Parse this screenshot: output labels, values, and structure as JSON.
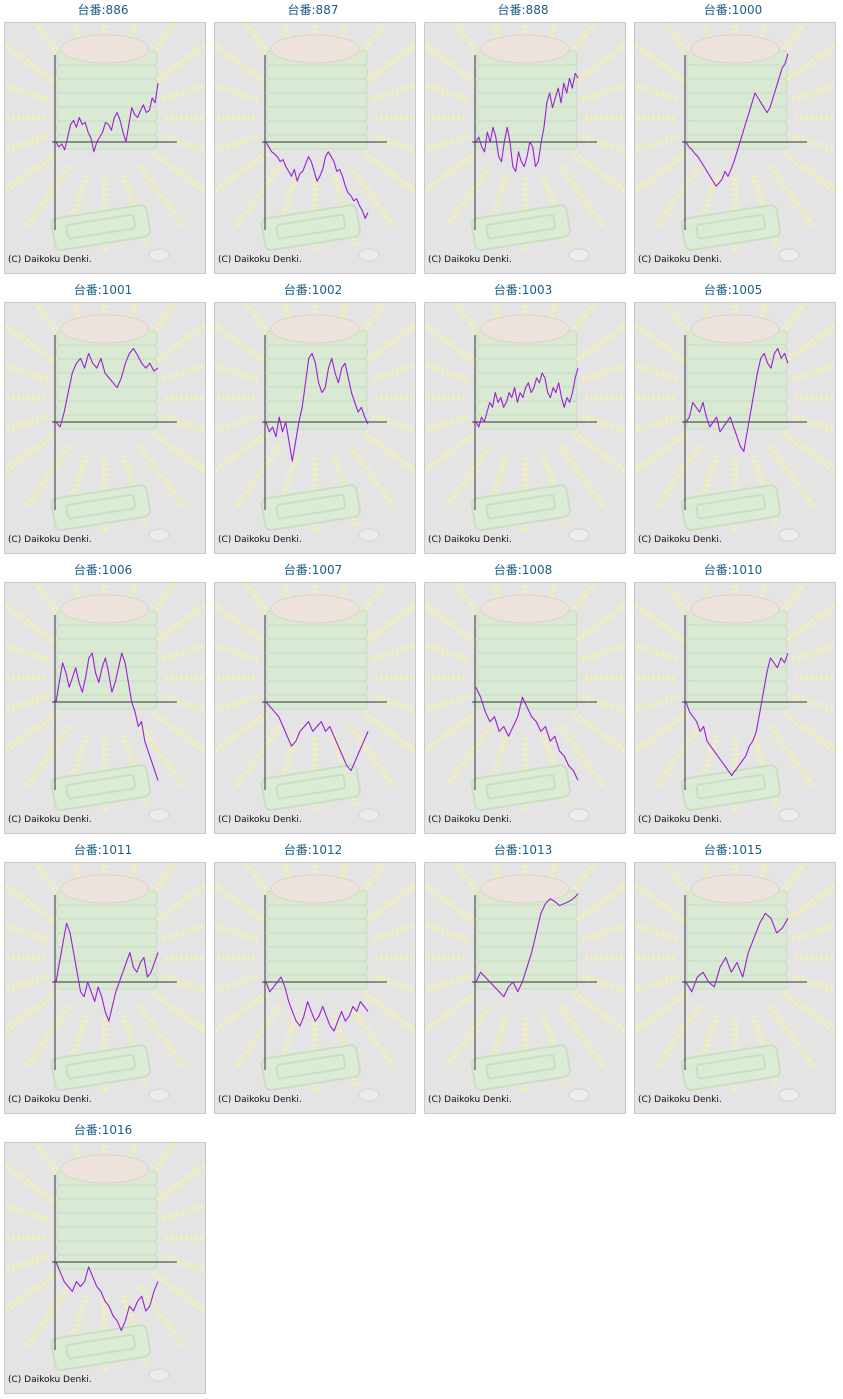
{
  "copyright": "(C) Daikoku Denki.",
  "colors": {
    "title": "#1a5e86",
    "line": "#9a1fd6",
    "axis": "#333333",
    "panel": "#e4e4e4"
  },
  "chart_data": [
    {
      "type": "line",
      "title": "台番:886",
      "values": [
        0,
        -5,
        -2,
        -8,
        5,
        18,
        22,
        15,
        25,
        18,
        20,
        10,
        4,
        -10,
        0,
        5,
        10,
        20,
        18,
        12,
        25,
        30,
        22,
        10,
        0,
        18,
        35,
        28,
        25,
        32,
        38,
        30,
        32,
        45,
        40,
        60
      ]
    },
    {
      "type": "line",
      "title": "台番:887",
      "values": [
        0,
        -5,
        -10,
        -12,
        -15,
        -20,
        -18,
        -25,
        -30,
        -35,
        -28,
        -40,
        -32,
        -30,
        -22,
        -15,
        -20,
        -30,
        -40,
        -35,
        -28,
        -15,
        -10,
        -15,
        -20,
        -30,
        -28,
        -35,
        -45,
        -52,
        -55,
        -60,
        -58,
        -65,
        -70,
        -78,
        -72
      ]
    },
    {
      "type": "line",
      "title": "台番:888",
      "values": [
        0,
        5,
        -5,
        -10,
        10,
        0,
        15,
        5,
        -15,
        -20,
        0,
        15,
        0,
        -25,
        -30,
        -10,
        -20,
        -25,
        -15,
        0,
        -5,
        -25,
        -20,
        0,
        15,
        40,
        50,
        35,
        45,
        55,
        40,
        60,
        50,
        65,
        55,
        70,
        65
      ]
    },
    {
      "type": "line",
      "title": "台番:1000",
      "values": [
        0,
        -5,
        -8,
        -12,
        -15,
        -20,
        -25,
        -30,
        -35,
        -40,
        -45,
        -42,
        -38,
        -30,
        -35,
        -28,
        -20,
        -10,
        0,
        10,
        20,
        30,
        40,
        50,
        45,
        40,
        35,
        30,
        35,
        45,
        55,
        65,
        75,
        80,
        90
      ]
    },
    {
      "type": "line",
      "title": "台番:1001",
      "values": [
        0,
        -5,
        10,
        30,
        50,
        60,
        65,
        55,
        70,
        60,
        55,
        65,
        50,
        45,
        40,
        35,
        45,
        60,
        70,
        75,
        68,
        60,
        55,
        60,
        52,
        55
      ]
    },
    {
      "type": "line",
      "title": "台番:1002",
      "values": [
        0,
        -10,
        -5,
        -15,
        5,
        -10,
        0,
        -20,
        -40,
        -20,
        0,
        15,
        40,
        65,
        70,
        60,
        40,
        30,
        35,
        55,
        65,
        50,
        40,
        55,
        60,
        45,
        30,
        20,
        10,
        15,
        5,
        -2
      ]
    },
    {
      "type": "line",
      "title": "台番:1003",
      "values": [
        0,
        -5,
        5,
        0,
        10,
        20,
        15,
        30,
        20,
        25,
        15,
        20,
        30,
        25,
        35,
        20,
        30,
        25,
        35,
        40,
        30,
        35,
        45,
        40,
        50,
        45,
        30,
        25,
        35,
        30,
        40,
        25,
        15,
        25,
        20,
        30,
        45,
        55
      ]
    },
    {
      "type": "line",
      "title": "台番:1005",
      "values": [
        0,
        5,
        20,
        15,
        10,
        20,
        5,
        -5,
        0,
        5,
        -10,
        -5,
        0,
        5,
        -5,
        -15,
        -25,
        -30,
        -10,
        10,
        30,
        50,
        65,
        70,
        60,
        55,
        70,
        75,
        65,
        70,
        60
      ]
    },
    {
      "type": "line",
      "title": "台番:1006",
      "values": [
        0,
        20,
        40,
        30,
        15,
        25,
        35,
        20,
        10,
        25,
        45,
        50,
        30,
        20,
        35,
        45,
        30,
        10,
        20,
        35,
        50,
        40,
        20,
        0,
        -10,
        -25,
        -20,
        -40,
        -50,
        -60,
        -70,
        -80
      ]
    },
    {
      "type": "line",
      "title": "台番:1007",
      "values": [
        0,
        -5,
        -10,
        -15,
        -25,
        -35,
        -45,
        -40,
        -30,
        -25,
        -20,
        -30,
        -25,
        -20,
        -30,
        -25,
        -35,
        -45,
        -55,
        -65,
        -70,
        -60,
        -50,
        -40,
        -30
      ]
    },
    {
      "type": "line",
      "title": "台番:1008",
      "values": [
        15,
        5,
        -10,
        -20,
        -15,
        -30,
        -25,
        -35,
        -25,
        -15,
        5,
        -5,
        -15,
        -20,
        -30,
        -25,
        -40,
        -35,
        -50,
        -55,
        -65,
        -70,
        -80
      ]
    },
    {
      "type": "line",
      "title": "台番:1010",
      "values": [
        0,
        -10,
        -15,
        -20,
        -30,
        -25,
        -40,
        -45,
        -50,
        -55,
        -60,
        -65,
        -70,
        -75,
        -70,
        -65,
        -60,
        -55,
        -45,
        -40,
        -30,
        -10,
        10,
        30,
        45,
        40,
        35,
        45,
        40,
        50
      ]
    },
    {
      "type": "line",
      "title": "台番:1011",
      "values": [
        0,
        20,
        40,
        60,
        50,
        30,
        10,
        -10,
        -15,
        0,
        -10,
        -20,
        -5,
        -15,
        -30,
        -40,
        -25,
        -10,
        0,
        10,
        20,
        30,
        15,
        10,
        20,
        25,
        5,
        10,
        20,
        30
      ]
    },
    {
      "type": "line",
      "title": "台番:1012",
      "values": [
        0,
        -10,
        -5,
        0,
        5,
        -5,
        -20,
        -30,
        -40,
        -45,
        -35,
        -20,
        -30,
        -40,
        -35,
        -25,
        -35,
        -45,
        -50,
        -40,
        -30,
        -40,
        -35,
        -25,
        -30,
        -20,
        -25,
        -30
      ]
    },
    {
      "type": "line",
      "title": "台番:1013",
      "values": [
        0,
        10,
        5,
        0,
        -5,
        -10,
        -15,
        -5,
        0,
        -10,
        0,
        15,
        30,
        50,
        70,
        80,
        85,
        82,
        78,
        80,
        82,
        85,
        90
      ]
    },
    {
      "type": "line",
      "title": "台番:1015",
      "values": [
        0,
        -10,
        5,
        10,
        0,
        -5,
        15,
        25,
        10,
        20,
        5,
        30,
        45,
        60,
        70,
        65,
        50,
        55,
        65
      ]
    },
    {
      "type": "line",
      "title": "台番:1016",
      "values": [
        0,
        -10,
        -20,
        -25,
        -30,
        -20,
        -25,
        -20,
        -5,
        -15,
        -25,
        -30,
        -40,
        -45,
        -55,
        -60,
        -70,
        -60,
        -45,
        -50,
        -40,
        -35,
        -50,
        -45,
        -30,
        -20
      ]
    }
  ]
}
